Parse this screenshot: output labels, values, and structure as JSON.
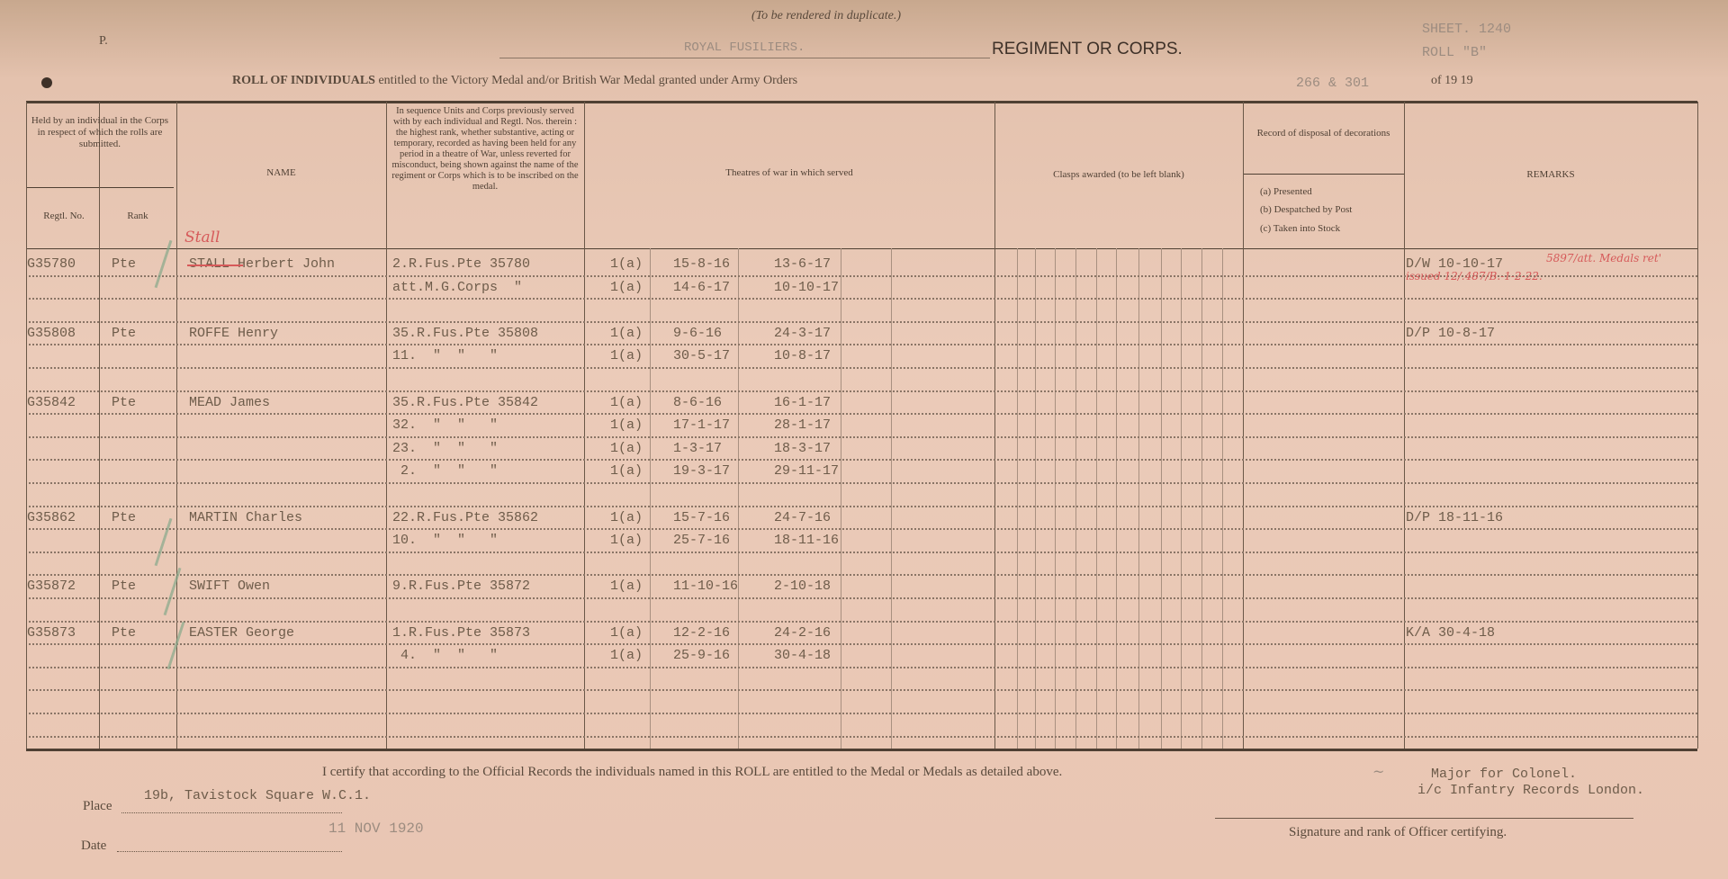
{
  "header": {
    "duplicate_note": "(To be rendered in duplicate.)",
    "corner_mark": "P.",
    "regiment_value": "ROYAL FUSILIERS.",
    "regiment_label": "REGIMENT OR CORPS.",
    "sheet": "SHEET. 1240",
    "roll": "ROLL \"B\"",
    "title_bold": "ROLL OF INDIVIDUALS",
    "title_rest": "entitled to the Victory Medal and/or British War Medal granted under Army Orders",
    "army_orders": "266 & 301",
    "year": "of 19 19"
  },
  "columns": {
    "held_by": "Held by an individual in the Corps in respect of which the rolls are submitted.",
    "regtl_no": "Regtl. No.",
    "rank": "Rank",
    "name": "NAME",
    "units": "In sequence Units and Corps previously served with by each individual and Regtl. Nos. therein : the highest rank, whether substantive, acting or temporary, recorded as having been held for any period in a theatre of War, unless reverted for misconduct, being shown against the name of the regiment or Corps which is to be inscribed on the medal.",
    "theatres": "Theatres of war in which served",
    "clasps": "Clasps awarded (to be left blank)",
    "disposal_title": "Record of disposal of decorations",
    "disposal_a": "(a) Presented",
    "disposal_b": "(b) Despatched by Post",
    "disposal_c": "(c) Taken into Stock",
    "remarks": "REMARKS"
  },
  "rows": [
    {
      "row": 0,
      "regtl": "G35780",
      "rank": "Pte",
      "name": "STALL Herbert John",
      "unit": "2.R.Fus.Pte 35780",
      "theatre": "1(a)",
      "from": "15-8-16",
      "to": "13-6-17",
      "remarks": "D/W 10-10-17"
    },
    {
      "row": 1,
      "unit": "att.M.G.Corps  \"",
      "theatre": "1(a)",
      "from": "14-6-17",
      "to": "10-10-17"
    },
    {
      "row": 3,
      "regtl": "G35808",
      "rank": "Pte",
      "name": "ROFFE Henry",
      "unit": "35.R.Fus.Pte 35808",
      "theatre": "1(a)",
      "from": "9-6-16",
      "to": "24-3-17",
      "remarks": "D/P 10-8-17"
    },
    {
      "row": 4,
      "unit": "11.  \"  \"   \"",
      "theatre": "1(a)",
      "from": "30-5-17",
      "to": "10-8-17"
    },
    {
      "row": 6,
      "regtl": "G35842",
      "rank": "Pte",
      "name": "MEAD James",
      "unit": "35.R.Fus.Pte 35842",
      "theatre": "1(a)",
      "from": "8-6-16",
      "to": "16-1-17"
    },
    {
      "row": 7,
      "unit": "32.  \"  \"   \"",
      "theatre": "1(a)",
      "from": "17-1-17",
      "to": "28-1-17"
    },
    {
      "row": 8,
      "unit": "23.  \"  \"   \"",
      "theatre": "1(a)",
      "from": "1-3-17",
      "to": "18-3-17"
    },
    {
      "row": 9,
      "unit": " 2.  \"  \"   \"",
      "theatre": "1(a)",
      "from": "19-3-17",
      "to": "29-11-17"
    },
    {
      "row": 11,
      "regtl": "G35862",
      "rank": "Pte",
      "name": "MARTIN Charles",
      "unit": "22.R.Fus.Pte 35862",
      "theatre": "1(a)",
      "from": "15-7-16",
      "to": "24-7-16",
      "remarks": "D/P 18-11-16"
    },
    {
      "row": 12,
      "unit": "10.  \"  \"   \"",
      "theatre": "1(a)",
      "from": "25-7-16",
      "to": "18-11-16"
    },
    {
      "row": 14,
      "regtl": "G35872",
      "rank": "Pte",
      "name": "SWIFT Owen",
      "unit": "9.R.Fus.Pte 35872",
      "theatre": "1(a)",
      "from": "11-10-16",
      "to": "2-10-18"
    },
    {
      "row": 16,
      "regtl": "G35873",
      "rank": "Pte",
      "name": "EASTER George",
      "unit": "1.R.Fus.Pte 35873",
      "theatre": "1(a)",
      "from": "12-2-16",
      "to": "24-2-16",
      "remarks": "K/A 30-4-18"
    },
    {
      "row": 17,
      "unit": " 4.  \"  \"   \"",
      "theatre": "1(a)",
      "from": "25-9-16",
      "to": "30-4-18"
    }
  ],
  "annotations": {
    "stall_correction": "Stall",
    "remark_red_1": "5897/att. Medals ret'",
    "remark_red_2": "issued 12/.487/B.-1-2-22."
  },
  "footer": {
    "certify": "I certify that according to the Official Records the individuals named in this ROLL are entitled to the Medal or Medals as detailed above.",
    "signature_rank_1": "Major for Colonel.",
    "signature_rank_2": "i/c Infantry Records London.",
    "place_label": "Place",
    "place_value": "19b, Tavistock Square W.C.1.",
    "date_label": "Date",
    "date_stamp": "11 NOV 1920",
    "signature_caption": "Signature and rank of Officer certifying."
  }
}
